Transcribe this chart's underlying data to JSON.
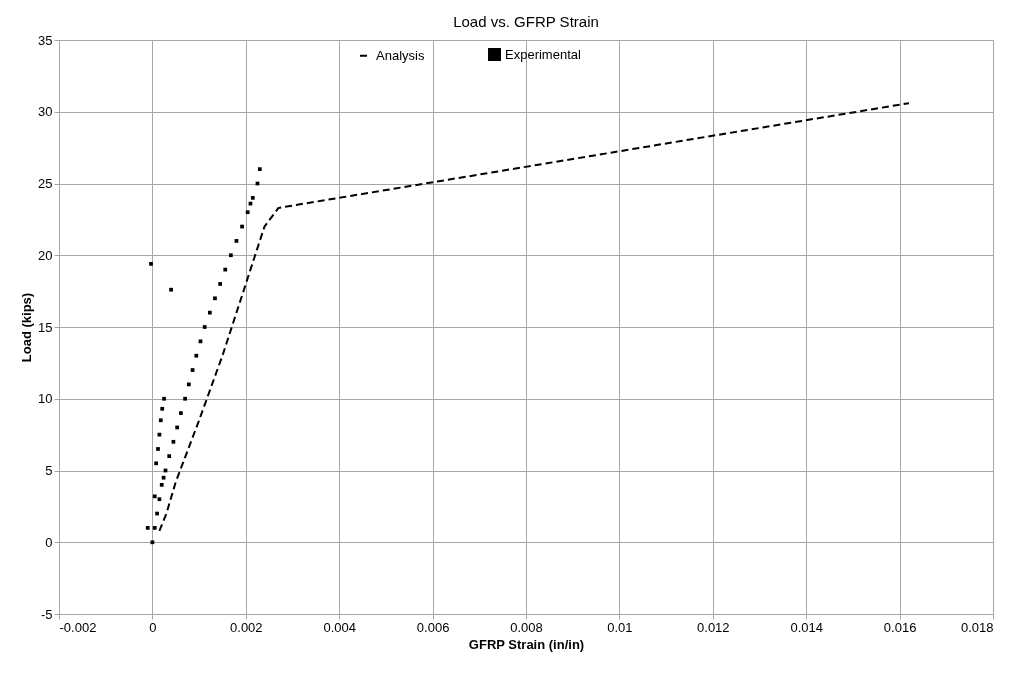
{
  "chart_data": {
    "type": "line",
    "title": "Load vs. GFRP Strain",
    "xlabel": "GFRP Strain (in/in)",
    "ylabel": "Load (kips)",
    "xlim": [
      -0.002,
      0.018
    ],
    "xticks": [
      -0.002,
      0,
      0.002,
      0.004,
      0.006,
      0.008,
      0.01,
      0.012,
      0.014,
      0.016,
      0.018
    ],
    "ylim": [
      -5,
      35
    ],
    "yticks": [
      -5,
      0,
      5,
      10,
      15,
      20,
      25,
      30,
      35
    ],
    "grid": true,
    "legend": "top",
    "series": [
      {
        "name": "Analysis",
        "line_style": "dashed",
        "color": "#000000",
        "x": [
          0.00015,
          0.0003,
          0.0005,
          0.001,
          0.0015,
          0.0021,
          0.0024,
          0.0027,
          0.0162
        ],
        "values": [
          0.8,
          2,
          4.2,
          8.5,
          13,
          19,
          22,
          23.3,
          30.6
        ]
      },
      {
        "name": "Experimental",
        "type": "scatter",
        "marker": "square",
        "color": "#000000",
        "x": [
          0,
          5e-05,
          0.0001,
          0.00015,
          0.0002,
          0.00024,
          0.00028,
          0.00036,
          0.00045,
          0.00053,
          0.00061,
          0.0007,
          0.00078,
          0.00086,
          0.00094,
          0.00103,
          0.00112,
          0.00123,
          0.00134,
          0.00145,
          0.00156,
          0.00168,
          0.0018,
          0.00192,
          0.00204,
          0.00215,
          0.00225,
          0.0023,
          -3e-05,
          0.0004,
          5e-05,
          -0.0001,
          0.0021,
          8e-05,
          0.00012,
          0.00015,
          0.00018,
          0.00021,
          0.00025
        ],
        "values": [
          0,
          1,
          2,
          3,
          4,
          4.5,
          5,
          6,
          7,
          8,
          9,
          10,
          11,
          12,
          13,
          14,
          15,
          16,
          17,
          18,
          19,
          20,
          21,
          22,
          23,
          24,
          25,
          26,
          19.4,
          17.6,
          3.2,
          1,
          23.6,
          5.5,
          6.5,
          7.5,
          8.5,
          9.3,
          10
        ]
      }
    ]
  }
}
